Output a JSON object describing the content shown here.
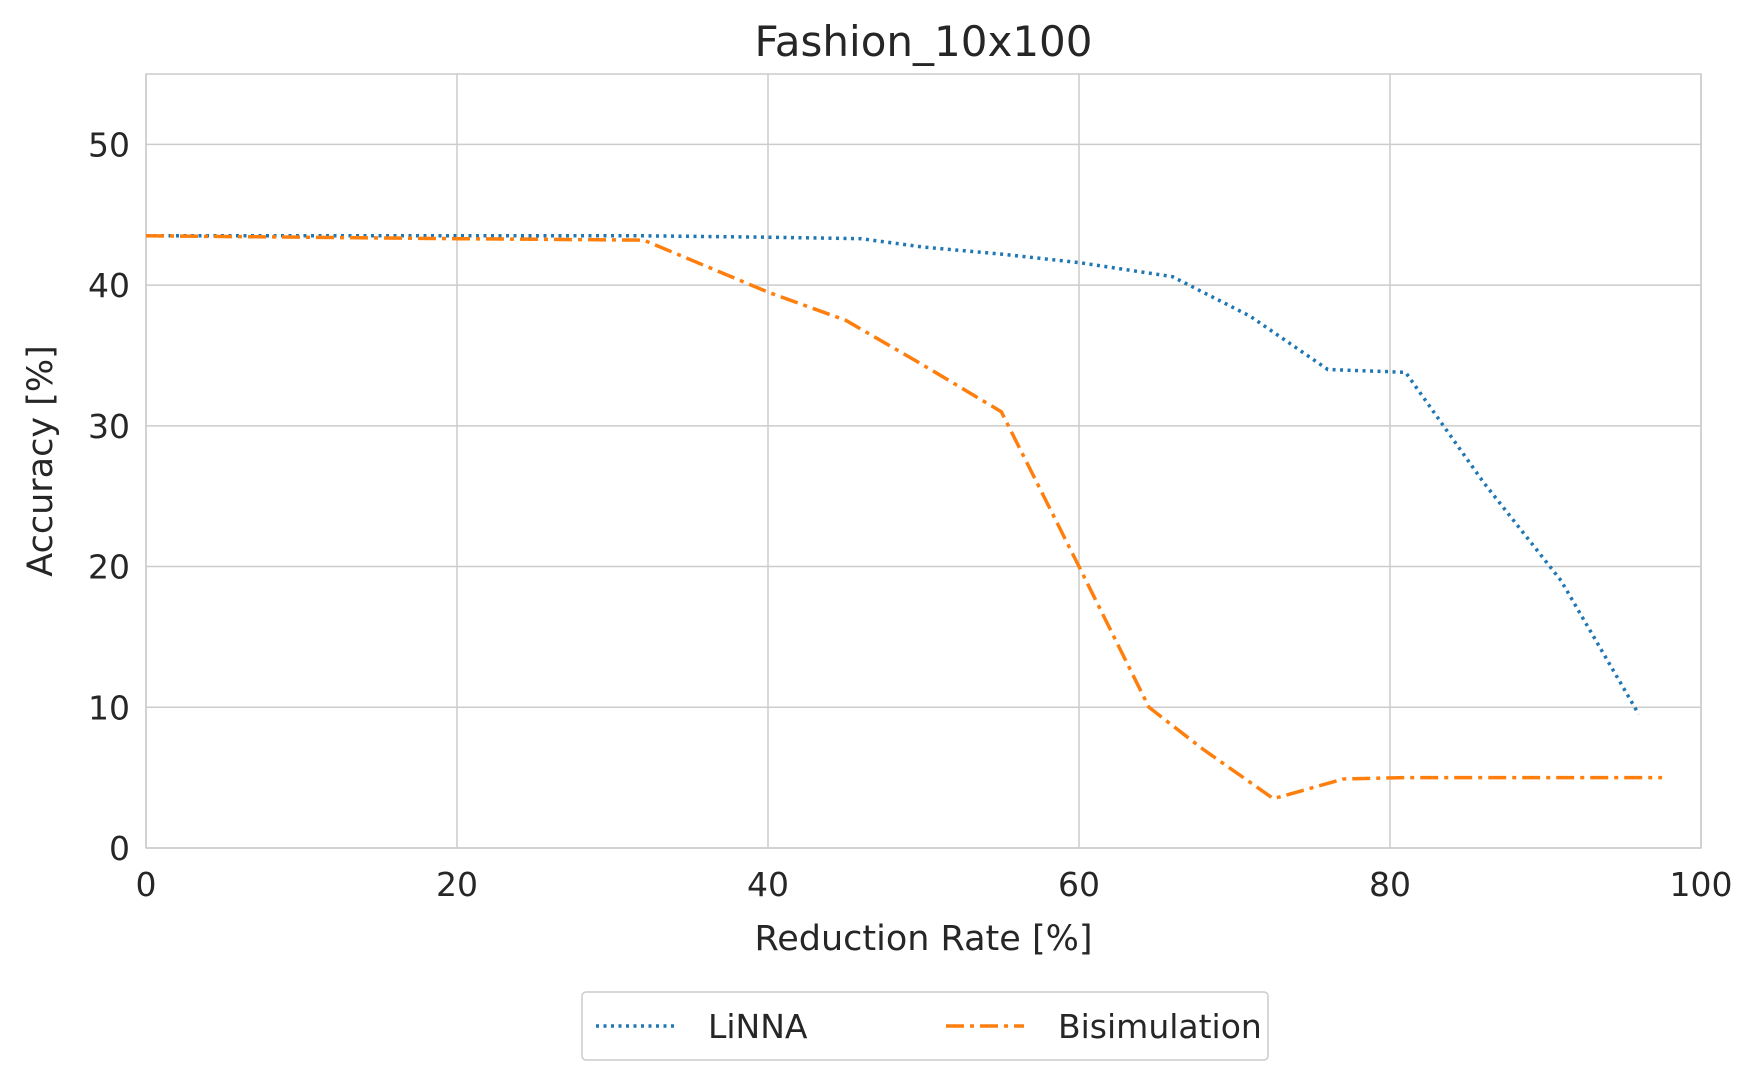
{
  "chart_data": {
    "type": "line",
    "title": "Fashion_10x100",
    "xlabel": "Reduction Rate [%]",
    "ylabel": "Accuracy [%]",
    "xlim": [
      0,
      100
    ],
    "ylim": [
      0,
      55
    ],
    "xticks": [
      0,
      20,
      40,
      60,
      80,
      100
    ],
    "yticks": [
      0,
      10,
      20,
      30,
      40,
      50
    ],
    "grid": true,
    "legend_position": "bottom-center",
    "series": [
      {
        "name": "LiNNA",
        "color": "#1f77b4",
        "style": "dotted",
        "x": [
          0,
          10,
          20,
          32,
          40,
          46,
          50,
          55,
          60,
          66,
          71,
          76,
          81,
          86,
          91,
          96
        ],
        "y": [
          43.5,
          43.5,
          43.5,
          43.5,
          43.4,
          43.3,
          42.7,
          42.2,
          41.6,
          40.6,
          37.8,
          34.0,
          33.8,
          26.0,
          19.0,
          9.5
        ]
      },
      {
        "name": "Bisimulation",
        "color": "#ff7f0e",
        "style": "dashdot",
        "x": [
          0,
          10,
          20,
          32,
          40,
          45,
          50,
          55,
          60,
          64.5,
          68,
          72.5,
          77,
          81,
          86,
          91,
          97.5
        ],
        "y": [
          43.5,
          43.4,
          43.3,
          43.2,
          39.5,
          37.5,
          34.3,
          31.0,
          20.0,
          10.0,
          7.0,
          3.5,
          4.9,
          5.0,
          5.0,
          5.0,
          5.0
        ]
      }
    ]
  }
}
